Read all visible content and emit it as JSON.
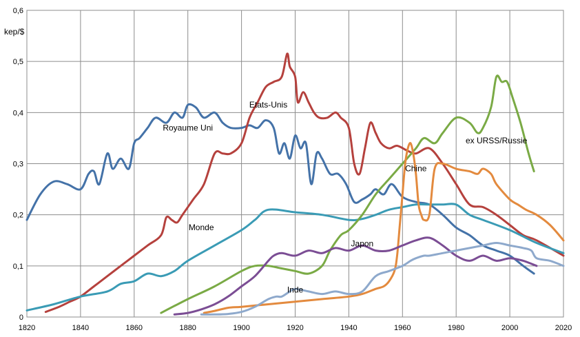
{
  "chart_data": {
    "type": "line",
    "ylabel": "kep/$",
    "xlim": [
      1820,
      2020
    ],
    "ylim": [
      0,
      0.6
    ],
    "xticks": [
      1820,
      1840,
      1860,
      1880,
      1900,
      1920,
      1940,
      1960,
      1980,
      2000,
      2020
    ],
    "xtick_labels": [
      "1820",
      "1840",
      "1860",
      "1880",
      "1900",
      "1920",
      "1940",
      "1960",
      "1980",
      "2000",
      "2020"
    ],
    "yticks": [
      0,
      0.1,
      0.2,
      0.3,
      0.4,
      0.5,
      0.6
    ],
    "ytick_labels": [
      "0",
      "0,1",
      "0,2",
      "0,3",
      "0,4",
      "0,5",
      "0,6"
    ],
    "grid": true,
    "legend": "none",
    "series": [
      {
        "name": "Royaume Uni",
        "color": "#4472A8",
        "label_at": [
          1880,
          0.365
        ],
        "x": [
          1820,
          1825,
          1830,
          1835,
          1840,
          1843,
          1845,
          1847,
          1850,
          1852,
          1855,
          1858,
          1860,
          1862,
          1865,
          1868,
          1872,
          1875,
          1878,
          1880,
          1883,
          1886,
          1890,
          1893,
          1896,
          1900,
          1903,
          1906,
          1909,
          1912,
          1914,
          1916,
          1918,
          1920,
          1922,
          1924,
          1926,
          1928,
          1930,
          1933,
          1936,
          1939,
          1942,
          1945,
          1948,
          1950,
          1953,
          1956,
          1960,
          1965,
          1970,
          1975,
          1980,
          1985,
          1990,
          1995,
          2000,
          2005,
          2009
        ],
        "y": [
          0.19,
          0.24,
          0.265,
          0.26,
          0.25,
          0.28,
          0.285,
          0.26,
          0.32,
          0.29,
          0.31,
          0.29,
          0.34,
          0.35,
          0.37,
          0.39,
          0.38,
          0.4,
          0.39,
          0.415,
          0.41,
          0.39,
          0.4,
          0.38,
          0.37,
          0.37,
          0.375,
          0.37,
          0.385,
          0.37,
          0.32,
          0.34,
          0.31,
          0.355,
          0.33,
          0.34,
          0.26,
          0.32,
          0.31,
          0.28,
          0.28,
          0.26,
          0.225,
          0.23,
          0.24,
          0.25,
          0.24,
          0.26,
          0.235,
          0.225,
          0.22,
          0.2,
          0.175,
          0.16,
          0.14,
          0.13,
          0.12,
          0.1,
          0.085
        ]
      },
      {
        "name": "Etats-Unis",
        "color": "#B5413D",
        "label_at": [
          1910,
          0.41
        ],
        "x": [
          1827,
          1832,
          1836,
          1840,
          1845,
          1850,
          1855,
          1860,
          1865,
          1870,
          1872,
          1874,
          1876,
          1878,
          1882,
          1886,
          1890,
          1893,
          1896,
          1900,
          1903,
          1906,
          1909,
          1912,
          1915,
          1917,
          1918,
          1920,
          1921,
          1923,
          1925,
          1927,
          1929,
          1932,
          1935,
          1937,
          1940,
          1942,
          1944,
          1946,
          1948,
          1950,
          1952,
          1955,
          1958,
          1962,
          1965,
          1970,
          1975,
          1980,
          1985,
          1990,
          1995,
          2000,
          2005,
          2010,
          2020
        ],
        "y": [
          0.01,
          0.02,
          0.03,
          0.04,
          0.06,
          0.08,
          0.1,
          0.12,
          0.14,
          0.16,
          0.195,
          0.19,
          0.185,
          0.2,
          0.23,
          0.26,
          0.32,
          0.32,
          0.32,
          0.34,
          0.39,
          0.42,
          0.45,
          0.46,
          0.47,
          0.515,
          0.49,
          0.47,
          0.42,
          0.44,
          0.42,
          0.4,
          0.39,
          0.39,
          0.4,
          0.39,
          0.37,
          0.3,
          0.28,
          0.33,
          0.38,
          0.36,
          0.34,
          0.33,
          0.335,
          0.325,
          0.32,
          0.33,
          0.3,
          0.26,
          0.22,
          0.215,
          0.2,
          0.18,
          0.16,
          0.15,
          0.12
        ]
      },
      {
        "name": "Monde",
        "color": "#3A9BB5",
        "label_at": [
          1885,
          0.17
        ],
        "x": [
          1820,
          1830,
          1840,
          1850,
          1855,
          1860,
          1865,
          1870,
          1875,
          1880,
          1890,
          1900,
          1905,
          1910,
          1920,
          1930,
          1940,
          1945,
          1950,
          1955,
          1960,
          1965,
          1970,
          1975,
          1980,
          1985,
          1990,
          2000,
          2010,
          2020
        ],
        "y": [
          0.013,
          0.025,
          0.04,
          0.05,
          0.065,
          0.07,
          0.085,
          0.08,
          0.09,
          0.11,
          0.14,
          0.17,
          0.19,
          0.21,
          0.205,
          0.2,
          0.19,
          0.192,
          0.2,
          0.21,
          0.215,
          0.22,
          0.22,
          0.22,
          0.22,
          0.2,
          0.19,
          0.17,
          0.145,
          0.125
        ]
      },
      {
        "name": "ex URSS/Russie",
        "color": "#7AAA45",
        "label_at": [
          1995,
          0.34
        ],
        "x": [
          1870,
          1880,
          1890,
          1900,
          1905,
          1910,
          1915,
          1920,
          1925,
          1930,
          1933,
          1937,
          1940,
          1945,
          1950,
          1955,
          1960,
          1965,
          1968,
          1972,
          1975,
          1980,
          1985,
          1988,
          1990,
          1993,
          1995,
          1997,
          1999,
          2001,
          2004,
          2007,
          2009
        ],
        "y": [
          0.008,
          0.035,
          0.06,
          0.09,
          0.1,
          0.1,
          0.095,
          0.09,
          0.085,
          0.1,
          0.13,
          0.16,
          0.17,
          0.2,
          0.24,
          0.27,
          0.3,
          0.33,
          0.35,
          0.34,
          0.36,
          0.39,
          0.38,
          0.36,
          0.37,
          0.41,
          0.47,
          0.46,
          0.46,
          0.43,
          0.38,
          0.32,
          0.285
        ]
      },
      {
        "name": "Chine",
        "color": "#E38A3E",
        "label_at": [
          1965,
          0.285
        ],
        "x": [
          1886,
          1890,
          1895,
          1900,
          1910,
          1920,
          1930,
          1940,
          1945,
          1950,
          1953,
          1955,
          1957,
          1958,
          1959,
          1960,
          1961,
          1962,
          1963,
          1964,
          1965,
          1966,
          1967,
          1968,
          1970,
          1972,
          1975,
          1980,
          1985,
          1988,
          1990,
          1993,
          1995,
          2000,
          2003,
          2006,
          2010,
          2015,
          2020
        ],
        "y": [
          0.008,
          0.012,
          0.018,
          0.02,
          0.025,
          0.03,
          0.035,
          0.04,
          0.045,
          0.055,
          0.06,
          0.07,
          0.09,
          0.12,
          0.18,
          0.24,
          0.3,
          0.33,
          0.34,
          0.32,
          0.28,
          0.22,
          0.2,
          0.19,
          0.2,
          0.29,
          0.3,
          0.29,
          0.285,
          0.28,
          0.29,
          0.28,
          0.26,
          0.23,
          0.22,
          0.21,
          0.2,
          0.18,
          0.15
        ]
      },
      {
        "name": "Japon",
        "color": "#7B4D94",
        "label_at": [
          1945,
          0.138
        ],
        "x": [
          1875,
          1880,
          1885,
          1890,
          1895,
          1900,
          1905,
          1910,
          1912,
          1915,
          1920,
          1925,
          1930,
          1935,
          1940,
          1945,
          1950,
          1955,
          1960,
          1965,
          1970,
          1975,
          1980,
          1985,
          1990,
          1995,
          2000,
          2005,
          2010
        ],
        "y": [
          0.005,
          0.008,
          0.015,
          0.025,
          0.04,
          0.06,
          0.08,
          0.11,
          0.12,
          0.125,
          0.12,
          0.13,
          0.125,
          0.135,
          0.13,
          0.14,
          0.13,
          0.13,
          0.14,
          0.15,
          0.155,
          0.14,
          0.12,
          0.11,
          0.12,
          0.11,
          0.115,
          0.11,
          0.1
        ]
      },
      {
        "name": "Inde",
        "color": "#8EA9CC",
        "label_at": [
          1920,
          0.048
        ],
        "x": [
          1885,
          1890,
          1895,
          1900,
          1905,
          1910,
          1913,
          1915,
          1918,
          1920,
          1925,
          1930,
          1935,
          1940,
          1945,
          1950,
          1955,
          1960,
          1963,
          1965,
          1968,
          1970,
          1975,
          1980,
          1985,
          1990,
          1995,
          2000,
          2005,
          2008,
          2010,
          2015,
          2020
        ],
        "y": [
          0.005,
          0.005,
          0.006,
          0.01,
          0.02,
          0.035,
          0.04,
          0.04,
          0.05,
          0.055,
          0.05,
          0.045,
          0.05,
          0.045,
          0.05,
          0.08,
          0.09,
          0.1,
          0.11,
          0.115,
          0.12,
          0.12,
          0.125,
          0.13,
          0.135,
          0.14,
          0.145,
          0.14,
          0.135,
          0.13,
          0.115,
          0.11,
          0.1
        ]
      }
    ]
  }
}
